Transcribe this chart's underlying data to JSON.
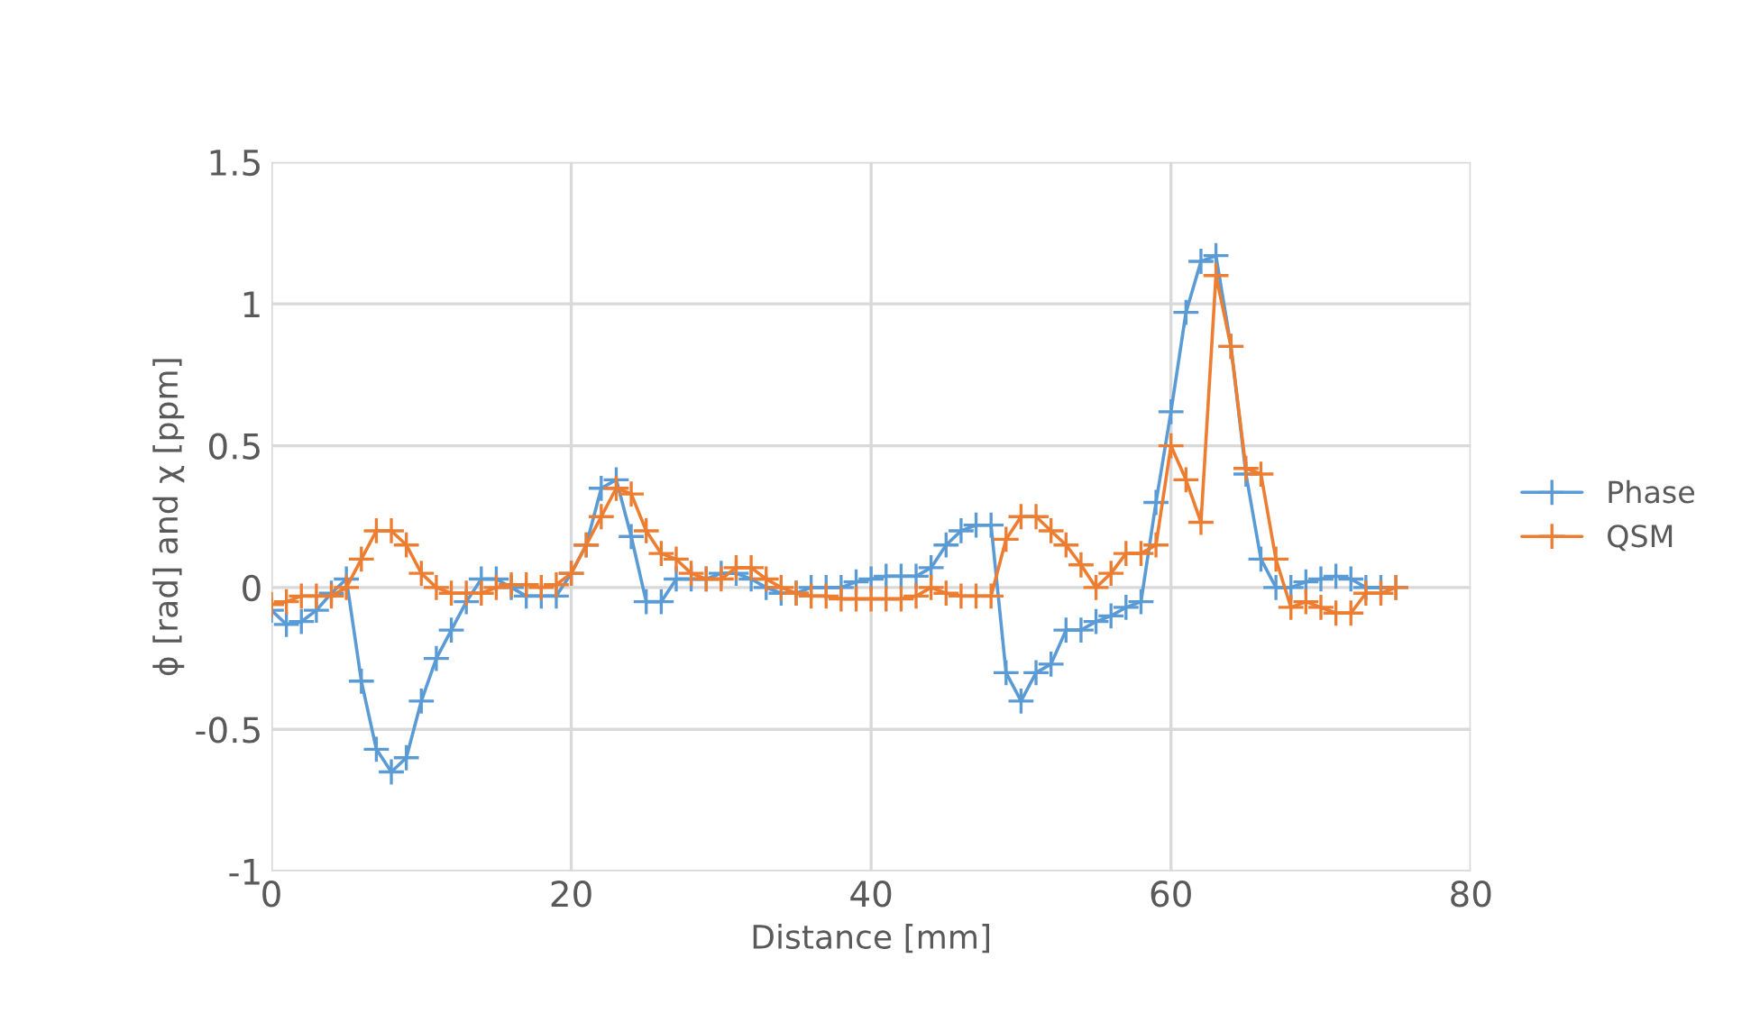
{
  "chart_data": {
    "type": "line",
    "xlabel": "Distance [mm]",
    "ylabel": "ϕ [rad] and χ [ppm]",
    "xlim": [
      0,
      80
    ],
    "xticks": [
      0,
      20,
      40,
      60,
      80
    ],
    "ylim": [
      -1,
      1.5
    ],
    "yticks": [
      -1,
      -0.5,
      0,
      0.5,
      1,
      1.5
    ],
    "grid": true,
    "legend": "right",
    "marker": "cross",
    "line_style": "solid",
    "x": [
      0,
      1,
      2,
      3,
      4,
      5,
      6,
      7,
      8,
      9,
      10,
      11,
      12,
      13,
      14,
      15,
      16,
      17,
      18,
      19,
      20,
      21,
      22,
      23,
      24,
      25,
      26,
      27,
      28,
      29,
      30,
      31,
      32,
      33,
      34,
      35,
      36,
      37,
      38,
      39,
      40,
      41,
      42,
      43,
      44,
      45,
      46,
      47,
      48,
      49,
      50,
      51,
      52,
      53,
      54,
      55,
      56,
      57,
      58,
      59,
      60,
      61,
      62,
      63,
      64,
      65,
      66,
      67,
      68,
      69,
      70,
      71,
      72,
      73,
      74,
      75
    ],
    "series": [
      {
        "name": "Phase",
        "color": "#5b9bd5",
        "values": [
          -0.08,
          -0.13,
          -0.12,
          -0.08,
          -0.02,
          0.03,
          -0.33,
          -0.57,
          -0.65,
          -0.6,
          -0.4,
          -0.25,
          -0.15,
          -0.05,
          0.03,
          0.03,
          0.0,
          -0.03,
          -0.03,
          -0.03,
          0.05,
          0.15,
          0.35,
          0.38,
          0.18,
          -0.05,
          -0.05,
          0.03,
          0.03,
          0.03,
          0.05,
          0.05,
          0.03,
          0.0,
          -0.02,
          -0.02,
          0.0,
          0.0,
          0.0,
          0.02,
          0.03,
          0.04,
          0.04,
          0.04,
          0.07,
          0.15,
          0.2,
          0.22,
          0.22,
          -0.3,
          -0.4,
          -0.3,
          -0.27,
          -0.15,
          -0.15,
          -0.12,
          -0.1,
          -0.07,
          -0.05,
          0.3,
          0.62,
          0.97,
          1.15,
          1.17,
          0.85,
          0.4,
          0.1,
          0.0,
          0.0,
          0.02,
          0.03,
          0.04,
          0.03,
          0.0,
          0.0,
          0.0
        ]
      },
      {
        "name": "QSM",
        "color": "#ed7d31",
        "values": [
          -0.06,
          -0.05,
          -0.03,
          -0.03,
          -0.03,
          0.0,
          0.1,
          0.2,
          0.2,
          0.15,
          0.05,
          0.0,
          -0.02,
          -0.02,
          -0.02,
          0.0,
          0.01,
          0.01,
          0.0,
          0.01,
          0.05,
          0.15,
          0.25,
          0.35,
          0.33,
          0.2,
          0.12,
          0.1,
          0.05,
          0.03,
          0.03,
          0.07,
          0.07,
          0.03,
          0.0,
          -0.02,
          -0.03,
          -0.03,
          -0.04,
          -0.04,
          -0.04,
          -0.04,
          -0.04,
          -0.03,
          0.0,
          -0.02,
          -0.03,
          -0.03,
          -0.03,
          0.17,
          0.25,
          0.25,
          0.2,
          0.15,
          0.08,
          0.0,
          0.05,
          0.12,
          0.12,
          0.15,
          0.5,
          0.38,
          0.23,
          1.1,
          0.85,
          0.42,
          0.4,
          0.1,
          -0.07,
          -0.05,
          -0.07,
          -0.09,
          -0.09,
          -0.02,
          -0.02,
          0.0
        ]
      }
    ]
  }
}
